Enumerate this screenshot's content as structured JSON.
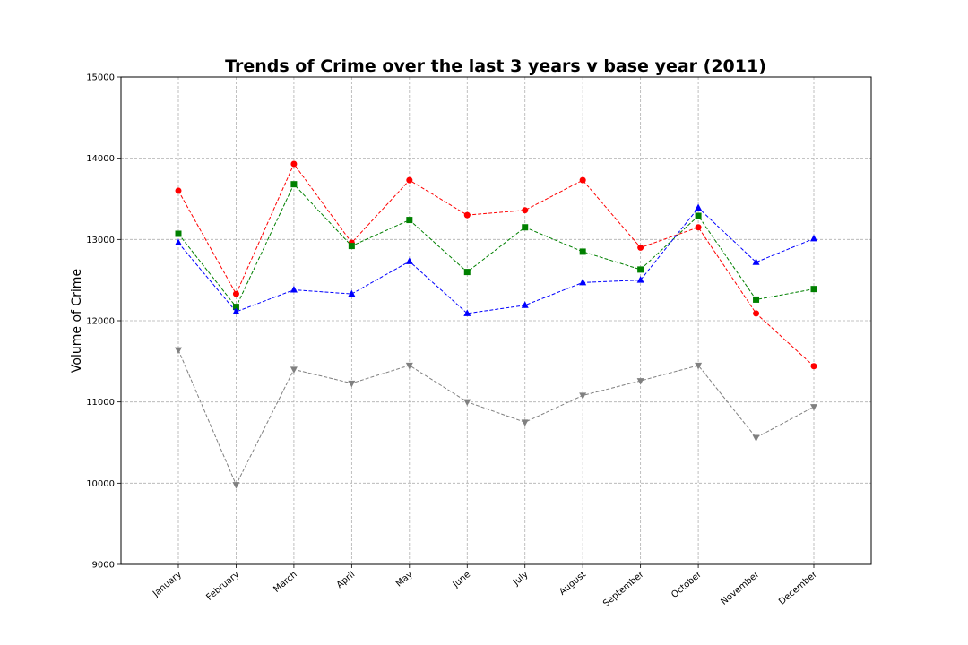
{
  "chart_data": {
    "type": "line",
    "title": "Trends of Crime over the last 3 years v base year (2011)",
    "xlabel": "",
    "ylabel": "Volume of Crime",
    "categories": [
      "January",
      "February",
      "March",
      "April",
      "May",
      "June",
      "July",
      "August",
      "September",
      "October",
      "November",
      "December"
    ],
    "ylim": [
      9000,
      15000
    ],
    "yticks": [
      "9000",
      "10000",
      "11000",
      "12000",
      "13000",
      "14000",
      "15000"
    ],
    "grid": true,
    "legend": "none",
    "series": [
      {
        "color": "#ff0000",
        "marker": "circle",
        "values": [
          13600,
          12330,
          13930,
          12960,
          13730,
          13300,
          13360,
          13730,
          12900,
          13150,
          12090,
          11440
        ]
      },
      {
        "color": "#008000",
        "marker": "square",
        "values": [
          13070,
          12170,
          13680,
          12920,
          13240,
          12600,
          13150,
          12850,
          12630,
          13290,
          12260,
          12390
        ]
      },
      {
        "color": "#0000ff",
        "marker": "triangle-up",
        "values": [
          12960,
          12110,
          12380,
          12330,
          12730,
          12090,
          12190,
          12470,
          12500,
          13390,
          12720,
          13010
        ]
      },
      {
        "color": "#808080",
        "marker": "triangle-down",
        "values": [
          11640,
          9980,
          11400,
          11230,
          11450,
          11000,
          10750,
          11080,
          11260,
          11450,
          10560,
          10940
        ]
      }
    ]
  }
}
